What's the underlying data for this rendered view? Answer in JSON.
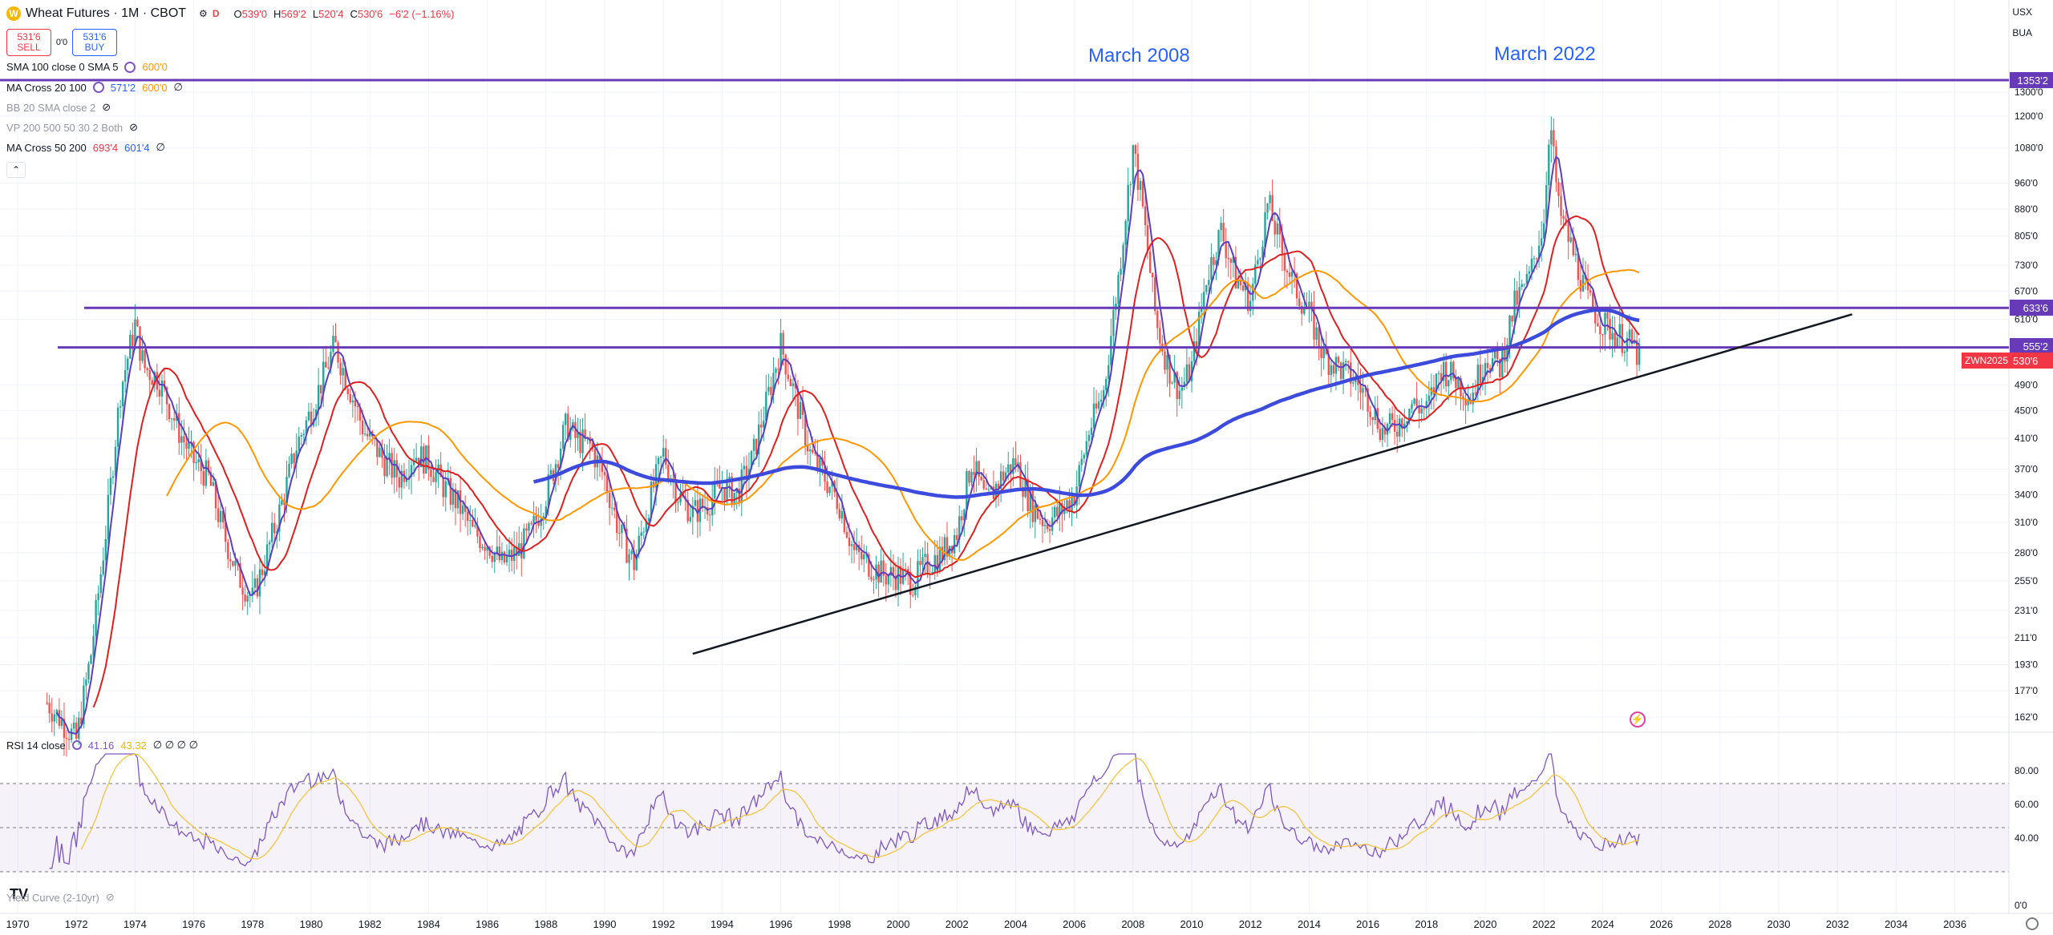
{
  "header": {
    "symbol": "Wheat Futures · 1M · CBOT",
    "logo": "W",
    "icons": [
      "gear-icon",
      "dollar-icon"
    ],
    "d_badge": "D",
    "open": "O",
    "open_v": "539'0",
    "high": "H",
    "high_v": "569'2",
    "low": "L",
    "low_v": "520'4",
    "close": "C",
    "close_v": "530'6",
    "change": "−6'2 (−1.16%)"
  },
  "trade": {
    "sell_price": "531'6",
    "sell_label": "SELL",
    "spread": "0'0",
    "buy_price": "531'6",
    "buy_label": "BUY"
  },
  "indicators": [
    {
      "name": "SMA 100 close 0 SMA 5",
      "v1": "",
      "v2": "600'0",
      "v3": "",
      "extra": ""
    },
    {
      "name": "MA Cross 20 100",
      "v1": "",
      "v2": "",
      "v3": "571'2",
      "v4": "600'0",
      "extra": "∅"
    },
    {
      "name": "BB 20 SMA close 2",
      "extra": "eye-off-icon"
    },
    {
      "name": "VP 200 500 50 30 2 Both",
      "extra": "eye-off-icon"
    },
    {
      "name": "MA Cross 50 200",
      "v1": "693'4",
      "v3": "601'4",
      "extra": "∅"
    }
  ],
  "currency": "USX",
  "currency2": "BUA",
  "annotations": {
    "a2008": "March 2008",
    "a2022": "March 2022"
  },
  "price_axis": [
    "1300'0",
    "1200'0",
    "1080'0",
    "960'0",
    "880'0",
    "805'0",
    "730'0",
    "670'0",
    "610'0",
    "490'0",
    "450'0",
    "410'0",
    "370'0",
    "340'0",
    "310'0",
    "280'0",
    "255'0",
    "231'0",
    "211'0",
    "193'0",
    "177'0",
    "162'0"
  ],
  "hline_labels": {
    "l1": "1353'2",
    "l2": "633'6",
    "l3": "555'2"
  },
  "current_price": "530'6",
  "current_symbol": "ZWN2025",
  "rsi": {
    "name": "RSI 14 close",
    "v1": "41.16",
    "v2": "43.32",
    "nulls": "∅ ∅ ∅ ∅"
  },
  "rsi_axis": [
    "80.00",
    "60.00",
    "40.00",
    "0'0"
  ],
  "yield_curve": "Yield Curve (2-10yr)",
  "time_axis": [
    "1970",
    "1972",
    "1974",
    "1976",
    "1978",
    "1980",
    "1982",
    "1984",
    "1986",
    "1988",
    "1990",
    "1992",
    "1994",
    "1996",
    "1998",
    "2000",
    "2002",
    "2004",
    "2006",
    "2008",
    "2010",
    "2012",
    "2014",
    "2016",
    "2018",
    "2020",
    "2022",
    "2024",
    "2026",
    "2028",
    "2030",
    "2032",
    "2034",
    "2036"
  ],
  "chart_data": {
    "type": "candlestick",
    "title": "Wheat Futures · 1M · CBOT",
    "x_unit": "year",
    "price_series": [
      [
        1971.0,
        170
      ],
      [
        1971.5,
        160
      ],
      [
        1972.0,
        150
      ],
      [
        1972.5,
        200
      ],
      [
        1973.0,
        300
      ],
      [
        1973.5,
        480
      ],
      [
        1974.0,
        600
      ],
      [
        1974.3,
        520
      ],
      [
        1974.8,
        500
      ],
      [
        1975.5,
        420
      ],
      [
        1976.0,
        380
      ],
      [
        1976.5,
        360
      ],
      [
        1977.0,
        300
      ],
      [
        1977.5,
        260
      ],
      [
        1978.0,
        240
      ],
      [
        1978.5,
        280
      ],
      [
        1979.0,
        330
      ],
      [
        1979.5,
        400
      ],
      [
        1980.0,
        450
      ],
      [
        1980.8,
        560
      ],
      [
        1981.2,
        500
      ],
      [
        1981.8,
        420
      ],
      [
        1982.5,
        380
      ],
      [
        1983.0,
        360
      ],
      [
        1983.5,
        390
      ],
      [
        1984.0,
        380
      ],
      [
        1984.5,
        350
      ],
      [
        1985.0,
        330
      ],
      [
        1985.5,
        300
      ],
      [
        1986.0,
        290
      ],
      [
        1986.5,
        270
      ],
      [
        1987.0,
        280
      ],
      [
        1987.5,
        300
      ],
      [
        1988.0,
        340
      ],
      [
        1988.7,
        430
      ],
      [
        1989.0,
        410
      ],
      [
        1989.5,
        400
      ],
      [
        1990.0,
        360
      ],
      [
        1990.5,
        300
      ],
      [
        1991.0,
        270
      ],
      [
        1991.5,
        330
      ],
      [
        1992.0,
        390
      ],
      [
        1992.5,
        340
      ],
      [
        1993.0,
        320
      ],
      [
        1993.5,
        330
      ],
      [
        1994.0,
        350
      ],
      [
        1994.5,
        340
      ],
      [
        1995.0,
        380
      ],
      [
        1995.5,
        460
      ],
      [
        1996.0,
        560
      ],
      [
        1996.5,
        470
      ],
      [
        1997.0,
        390
      ],
      [
        1997.5,
        360
      ],
      [
        1998.0,
        330
      ],
      [
        1998.5,
        280
      ],
      [
        1999.0,
        270
      ],
      [
        1999.5,
        260
      ],
      [
        2000.0,
        260
      ],
      [
        2000.5,
        255
      ],
      [
        2001.0,
        270
      ],
      [
        2001.5,
        280
      ],
      [
        2002.0,
        300
      ],
      [
        2002.5,
        380
      ],
      [
        2003.0,
        330
      ],
      [
        2003.5,
        360
      ],
      [
        2004.0,
        380
      ],
      [
        2004.5,
        330
      ],
      [
        2005.0,
        310
      ],
      [
        2005.5,
        320
      ],
      [
        2006.0,
        340
      ],
      [
        2006.5,
        420
      ],
      [
        2007.0,
        480
      ],
      [
        2007.5,
        700
      ],
      [
        2008.0,
        1080
      ],
      [
        2008.3,
        900
      ],
      [
        2008.8,
        600
      ],
      [
        2009.2,
        520
      ],
      [
        2009.6,
        480
      ],
      [
        2010.0,
        520
      ],
      [
        2010.5,
        700
      ],
      [
        2011.0,
        820
      ],
      [
        2011.5,
        700
      ],
      [
        2012.0,
        650
      ],
      [
        2012.6,
        900
      ],
      [
        2013.0,
        780
      ],
      [
        2013.5,
        680
      ],
      [
        2014.0,
        620
      ],
      [
        2014.5,
        540
      ],
      [
        2015.0,
        520
      ],
      [
        2015.5,
        500
      ],
      [
        2016.0,
        470
      ],
      [
        2016.5,
        420
      ],
      [
        2017.0,
        430
      ],
      [
        2017.5,
        460
      ],
      [
        2018.0,
        450
      ],
      [
        2018.5,
        520
      ],
      [
        2019.0,
        500
      ],
      [
        2019.5,
        470
      ],
      [
        2020.0,
        540
      ],
      [
        2020.5,
        520
      ],
      [
        2021.0,
        640
      ],
      [
        2021.5,
        700
      ],
      [
        2022.0,
        850
      ],
      [
        2022.2,
        1200
      ],
      [
        2022.5,
        880
      ],
      [
        2023.0,
        760
      ],
      [
        2023.5,
        650
      ],
      [
        2024.0,
        600
      ],
      [
        2024.5,
        580
      ],
      [
        2025.0,
        560
      ],
      [
        2025.3,
        531
      ]
    ],
    "horizontal_levels": [
      1353.2,
      633.6,
      555.2
    ],
    "trendline": {
      "from": [
        1993.0,
        200
      ],
      "to": [
        2032.5,
        620
      ]
    },
    "rsi_range": [
      0,
      100
    ],
    "rsi_levels": [
      70,
      30
    ]
  }
}
